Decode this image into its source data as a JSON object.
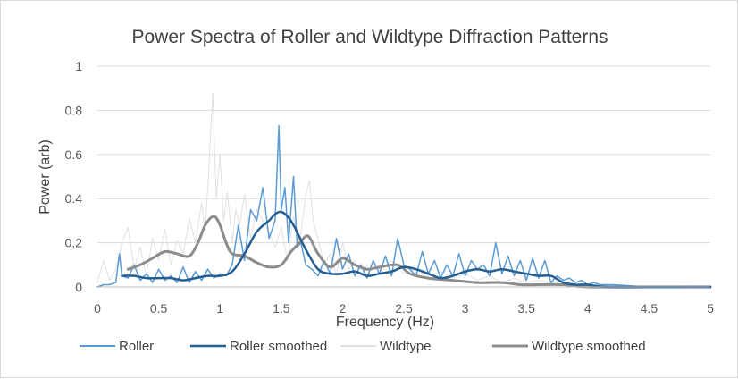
{
  "chart_data": {
    "type": "line",
    "title": "Power Spectra of  Roller and Wildtype Diffraction Patterns",
    "xlabel": "Frequency (Hz)",
    "ylabel": "Power (arb)",
    "xlim": [
      0,
      5
    ],
    "ylim": [
      0,
      1
    ],
    "xticks": [
      "0",
      "0.5",
      "1",
      "1.5",
      "2",
      "2.5",
      "3",
      "3.5",
      "4",
      "4.5",
      "5"
    ],
    "yticks": [
      "0",
      "0.2",
      "0.4",
      "0.6",
      "0.8",
      "1"
    ],
    "gridlines": "horizontal",
    "legend_position": "bottom",
    "series": [
      {
        "name": "Wildtype",
        "color": "#e1e1e1",
        "width": 1,
        "x": [
          0,
          0.05,
          0.1,
          0.15,
          0.2,
          0.25,
          0.3,
          0.35,
          0.4,
          0.45,
          0.5,
          0.55,
          0.6,
          0.65,
          0.7,
          0.75,
          0.8,
          0.85,
          0.88,
          0.91,
          0.94,
          0.97,
          1.0,
          1.03,
          1.06,
          1.1,
          1.13,
          1.16,
          1.2,
          1.25,
          1.3,
          1.35,
          1.4,
          1.45,
          1.5,
          1.55,
          1.6,
          1.65,
          1.7,
          1.73,
          1.76,
          1.8,
          1.85,
          1.9,
          1.95,
          2.0,
          2.05,
          2.1,
          2.15,
          2.2,
          2.3,
          2.4,
          2.5,
          2.6,
          2.7,
          2.8,
          2.9,
          3.0,
          3.1,
          3.2,
          3.3,
          3.4,
          3.5,
          3.6,
          3.7,
          3.8,
          3.9,
          4.0,
          4.1,
          4.2,
          4.3,
          4.5,
          5.0
        ],
        "values": [
          0.02,
          0.12,
          0.03,
          0.08,
          0.2,
          0.27,
          0.08,
          0.18,
          0.05,
          0.22,
          0.12,
          0.26,
          0.1,
          0.21,
          0.15,
          0.31,
          0.2,
          0.38,
          0.25,
          0.55,
          0.88,
          0.4,
          0.6,
          0.3,
          0.43,
          0.2,
          0.35,
          0.28,
          0.42,
          0.22,
          0.35,
          0.3,
          0.25,
          0.18,
          0.27,
          0.12,
          0.32,
          0.2,
          0.42,
          0.48,
          0.3,
          0.22,
          0.1,
          0.15,
          0.05,
          0.2,
          0.08,
          0.12,
          0.05,
          0.1,
          0.08,
          0.12,
          0.06,
          0.08,
          0.05,
          0.07,
          0.04,
          0.06,
          0.03,
          0.05,
          0.02,
          0.04,
          0.02,
          0.03,
          0.02,
          0.01,
          0.01,
          0.01,
          0.01,
          0.01,
          0.0,
          0.0,
          0.0
        ]
      },
      {
        "name": "Roller",
        "color": "#5b9bd5",
        "width": 1.5,
        "x": [
          0,
          0.05,
          0.1,
          0.15,
          0.18,
          0.2,
          0.25,
          0.3,
          0.35,
          0.4,
          0.45,
          0.5,
          0.55,
          0.6,
          0.65,
          0.7,
          0.75,
          0.8,
          0.85,
          0.9,
          0.95,
          1.0,
          1.05,
          1.1,
          1.15,
          1.2,
          1.25,
          1.3,
          1.35,
          1.4,
          1.45,
          1.48,
          1.5,
          1.53,
          1.56,
          1.6,
          1.63,
          1.66,
          1.7,
          1.75,
          1.8,
          1.85,
          1.9,
          1.95,
          2.0,
          2.05,
          2.1,
          2.15,
          2.2,
          2.25,
          2.3,
          2.35,
          2.4,
          2.45,
          2.5,
          2.55,
          2.6,
          2.65,
          2.7,
          2.75,
          2.8,
          2.85,
          2.9,
          2.95,
          3.0,
          3.05,
          3.1,
          3.15,
          3.2,
          3.25,
          3.3,
          3.35,
          3.4,
          3.45,
          3.5,
          3.55,
          3.6,
          3.65,
          3.7,
          3.75,
          3.8,
          3.85,
          3.9,
          3.95,
          4.0,
          4.05,
          4.1,
          4.2,
          4.5,
          5.0
        ],
        "values": [
          0.0,
          0.01,
          0.01,
          0.02,
          0.15,
          0.05,
          0.04,
          0.1,
          0.03,
          0.06,
          0.02,
          0.08,
          0.03,
          0.05,
          0.02,
          0.09,
          0.02,
          0.07,
          0.03,
          0.08,
          0.04,
          0.06,
          0.05,
          0.1,
          0.28,
          0.12,
          0.35,
          0.3,
          0.45,
          0.22,
          0.3,
          0.73,
          0.35,
          0.45,
          0.2,
          0.5,
          0.18,
          0.2,
          0.1,
          0.08,
          0.05,
          0.12,
          0.06,
          0.22,
          0.08,
          0.15,
          0.05,
          0.1,
          0.04,
          0.12,
          0.06,
          0.14,
          0.05,
          0.22,
          0.1,
          0.08,
          0.05,
          0.16,
          0.06,
          0.12,
          0.04,
          0.1,
          0.05,
          0.15,
          0.05,
          0.12,
          0.08,
          0.1,
          0.05,
          0.2,
          0.06,
          0.14,
          0.05,
          0.12,
          0.03,
          0.13,
          0.04,
          0.12,
          0.02,
          0.05,
          0.03,
          0.04,
          0.02,
          0.03,
          0.01,
          0.02,
          0.01,
          0.01,
          0.0,
          0.0
        ]
      },
      {
        "name": "Wildtype smoothed",
        "color": "#8c8c8c",
        "width": 3,
        "x": [
          0.25,
          0.35,
          0.45,
          0.55,
          0.65,
          0.75,
          0.82,
          0.88,
          0.95,
          1.0,
          1.05,
          1.1,
          1.2,
          1.3,
          1.4,
          1.5,
          1.58,
          1.65,
          1.72,
          1.8,
          1.9,
          2.0,
          2.1,
          2.2,
          2.3,
          2.45,
          2.55,
          2.7,
          2.9,
          3.1,
          3.3,
          3.45,
          3.6,
          3.8,
          4.0,
          4.5,
          5.0
        ],
        "values": [
          0.08,
          0.1,
          0.13,
          0.16,
          0.15,
          0.14,
          0.2,
          0.28,
          0.32,
          0.28,
          0.2,
          0.15,
          0.14,
          0.11,
          0.09,
          0.1,
          0.16,
          0.2,
          0.23,
          0.15,
          0.09,
          0.13,
          0.1,
          0.08,
          0.09,
          0.1,
          0.06,
          0.04,
          0.03,
          0.02,
          0.02,
          0.01,
          0.01,
          0.01,
          0.0,
          0.0,
          0.0
        ]
      },
      {
        "name": "Roller smoothed",
        "color": "#255e91",
        "width": 2.5,
        "x": [
          0.2,
          0.3,
          0.4,
          0.5,
          0.6,
          0.7,
          0.8,
          0.9,
          1.0,
          1.1,
          1.2,
          1.3,
          1.4,
          1.45,
          1.5,
          1.55,
          1.6,
          1.7,
          1.8,
          1.9,
          2.0,
          2.1,
          2.2,
          2.3,
          2.4,
          2.5,
          2.6,
          2.7,
          2.8,
          2.9,
          3.0,
          3.1,
          3.2,
          3.3,
          3.4,
          3.5,
          3.6,
          3.7,
          3.8,
          3.9,
          4.0,
          4.2,
          5.0
        ],
        "values": [
          0.05,
          0.05,
          0.04,
          0.04,
          0.04,
          0.03,
          0.04,
          0.05,
          0.05,
          0.07,
          0.15,
          0.25,
          0.3,
          0.33,
          0.34,
          0.32,
          0.28,
          0.17,
          0.08,
          0.06,
          0.06,
          0.07,
          0.05,
          0.06,
          0.07,
          0.09,
          0.08,
          0.06,
          0.04,
          0.05,
          0.07,
          0.08,
          0.07,
          0.08,
          0.07,
          0.06,
          0.05,
          0.05,
          0.02,
          0.01,
          0.01,
          0.0,
          0.0
        ]
      }
    ]
  }
}
